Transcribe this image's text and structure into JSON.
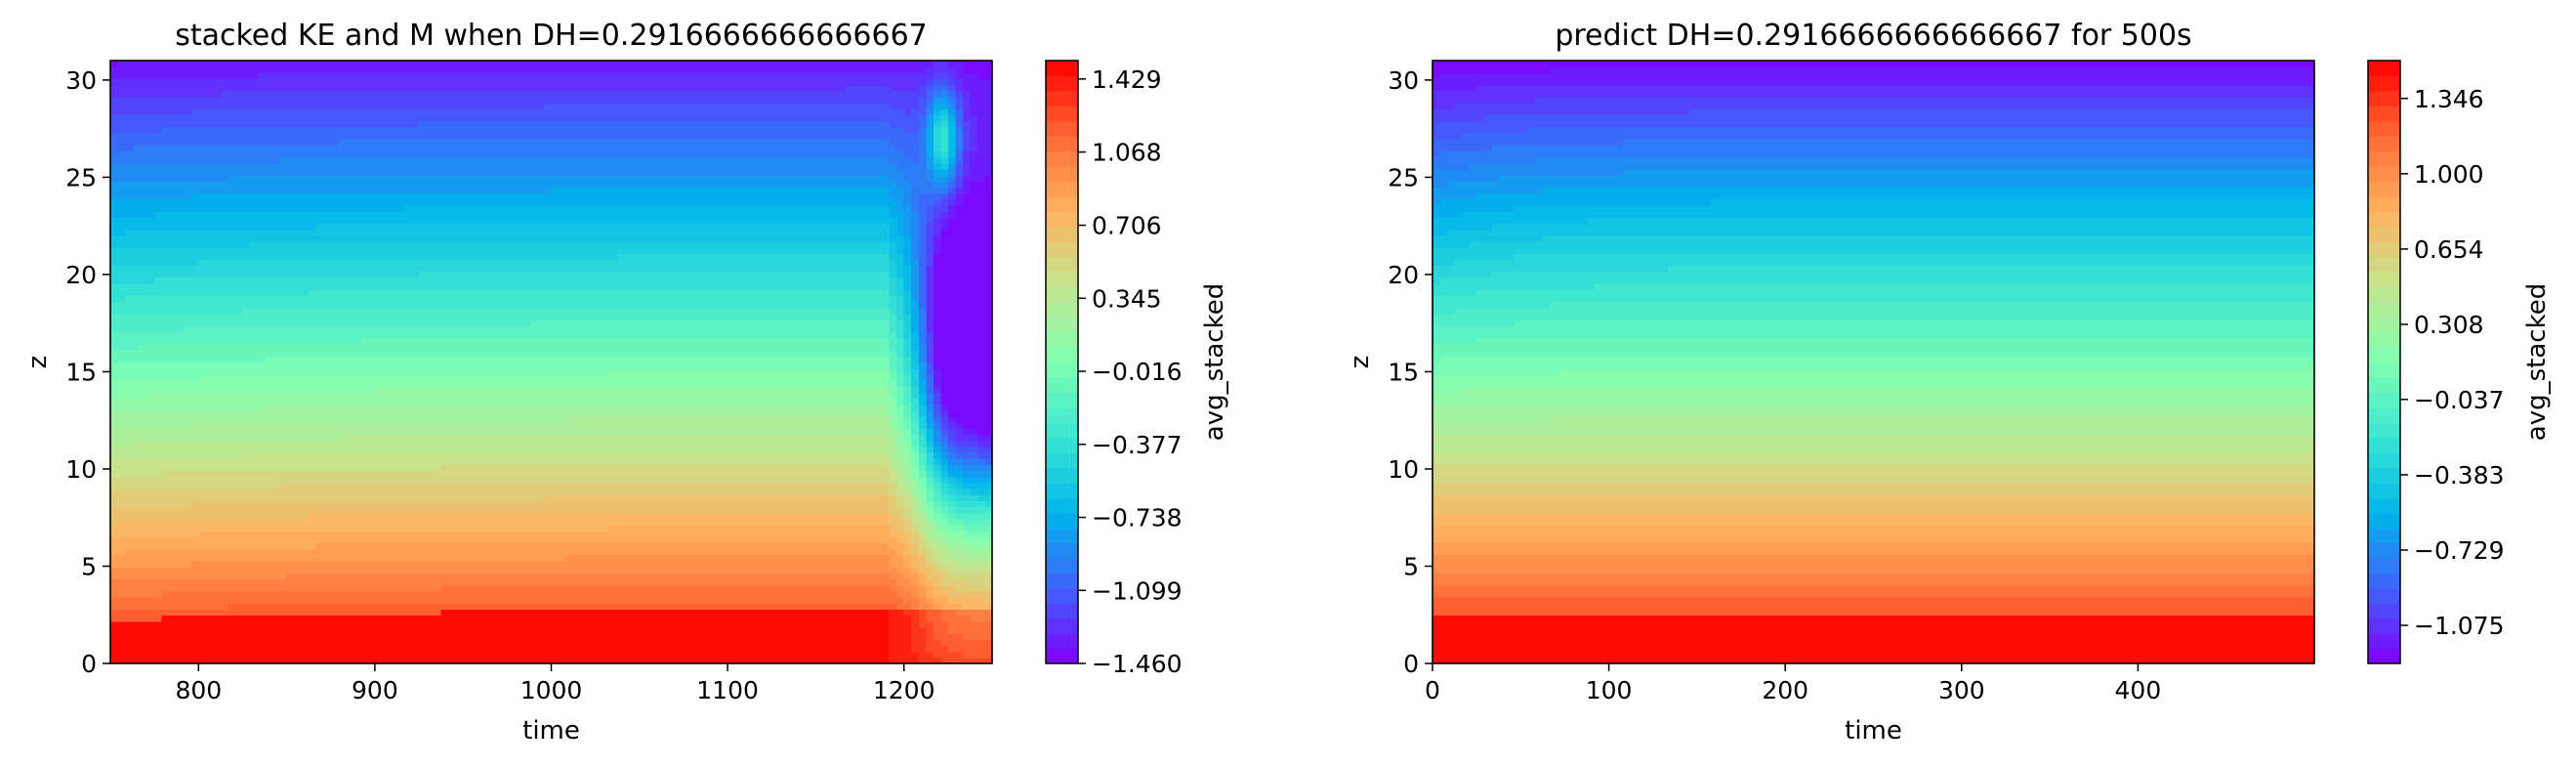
{
  "colors": {
    "rainbow_stops": [
      "#7f00ff",
      "#4062fa",
      "#00b5eb",
      "#3ae6d2",
      "#7ffeb3",
      "#c2e68f",
      "#ffb360",
      "#ff6a36",
      "#ff0000"
    ],
    "axis": "#000000",
    "background": "#ffffff"
  },
  "chart_data": [
    {
      "type": "heatmap",
      "title": "stacked KE and M when DH=0.2916666666666667",
      "xlabel": "time",
      "ylabel": "z",
      "xlim": [
        750,
        1250
      ],
      "ylim": [
        0,
        31
      ],
      "xticks": [
        "800",
        "900",
        "1000",
        "1100",
        "1200"
      ],
      "xtick_values": [
        800,
        900,
        1000,
        1100,
        1200
      ],
      "yticks": [
        "0",
        "5",
        "10",
        "15",
        "20",
        "25",
        "30"
      ],
      "ytick_values": [
        0,
        5,
        10,
        15,
        20,
        25,
        30
      ],
      "colorbar": {
        "label": "avg_stacked",
        "range": [
          -1.46,
          1.52
        ],
        "ticks": [
          "1.429",
          "1.068",
          "0.706",
          "0.345",
          "−0.016",
          "−0.377",
          "−0.738",
          "−1.099",
          "−1.460"
        ],
        "tick_values": [
          1.429,
          1.068,
          0.706,
          0.345,
          -0.016,
          -0.377,
          -0.738,
          -1.099,
          -1.46
        ]
      },
      "field": {
        "pattern": "value decreases with z from about 1.45 at z=0 to about -1.4 at z=31; iso-levels drift upward slightly over time; sharp disturbance near time 1200-1250 where low values plunge downward toward z~5"
      }
    },
    {
      "type": "heatmap",
      "title": "predict DH=0.2916666666666667 for 500s",
      "xlabel": "time",
      "ylabel": "z",
      "xlim": [
        0,
        500
      ],
      "ylim": [
        0,
        31
      ],
      "xticks": [
        "0",
        "100",
        "200",
        "300",
        "400"
      ],
      "xtick_values": [
        0,
        100,
        200,
        300,
        400
      ],
      "yticks": [
        "0",
        "5",
        "10",
        "15",
        "20",
        "25",
        "30"
      ],
      "ytick_values": [
        0,
        5,
        10,
        15,
        20,
        25,
        30
      ],
      "colorbar": {
        "label": "avg_stacked",
        "range": [
          -1.25,
          1.52
        ],
        "ticks": [
          "1.346",
          "1.000",
          "0.654",
          "0.308",
          "−0.037",
          "−0.383",
          "−0.729",
          "−1.075"
        ],
        "tick_values": [
          1.346,
          1.0,
          0.654,
          0.308,
          -0.037,
          -0.383,
          -0.729,
          -1.075
        ]
      },
      "field": {
        "pattern": "smooth vertical gradient, high values near z=0 and low values near z=31; upper iso-levels rise slightly during the first ~100 time units and then stay flat"
      }
    }
  ]
}
